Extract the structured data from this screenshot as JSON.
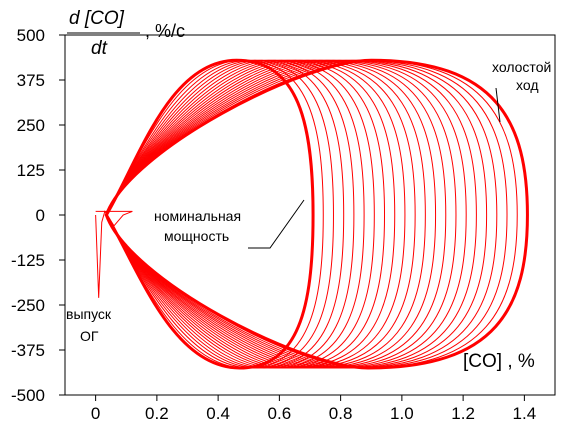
{
  "chart_data": {
    "type": "line",
    "title": "",
    "ylabel": {
      "numerator": "d [CO]",
      "denominator": "dt",
      "unit": ", %/c"
    },
    "xlabel": "[CO] , %",
    "xlim": [
      -0.1,
      1.5
    ],
    "ylim": [
      -500,
      500
    ],
    "x_ticks": [
      "0",
      "0.2",
      "0.4",
      "0.6",
      "0.8",
      "1.0",
      "1.2",
      "1.4"
    ],
    "x_tick_values": [
      0,
      0.2,
      0.4,
      0.6,
      0.8,
      1.0,
      1.2,
      1.4
    ],
    "y_ticks": [
      "500",
      "375",
      "250",
      "125",
      "0",
      "-125",
      "-250",
      "-375",
      "-500"
    ],
    "y_tick_values": [
      500,
      375,
      250,
      125,
      0,
      -125,
      -250,
      -375,
      -500
    ],
    "grid": false,
    "line_color": "#ff0000",
    "family": {
      "description_of_curves": "closed loops d[CO]/dt vs [CO], one per load regime",
      "count": 22,
      "right_extent_first": 0.71,
      "right_extent_last": 1.41,
      "peak_dcdt": 430,
      "trough_dcdt": -425
    },
    "annotations": {
      "idle": [
        "холостой",
        "ход"
      ],
      "nominal": [
        "номинальная",
        "мощность"
      ],
      "exhaust": [
        "выпуск",
        "ОГ"
      ]
    }
  }
}
